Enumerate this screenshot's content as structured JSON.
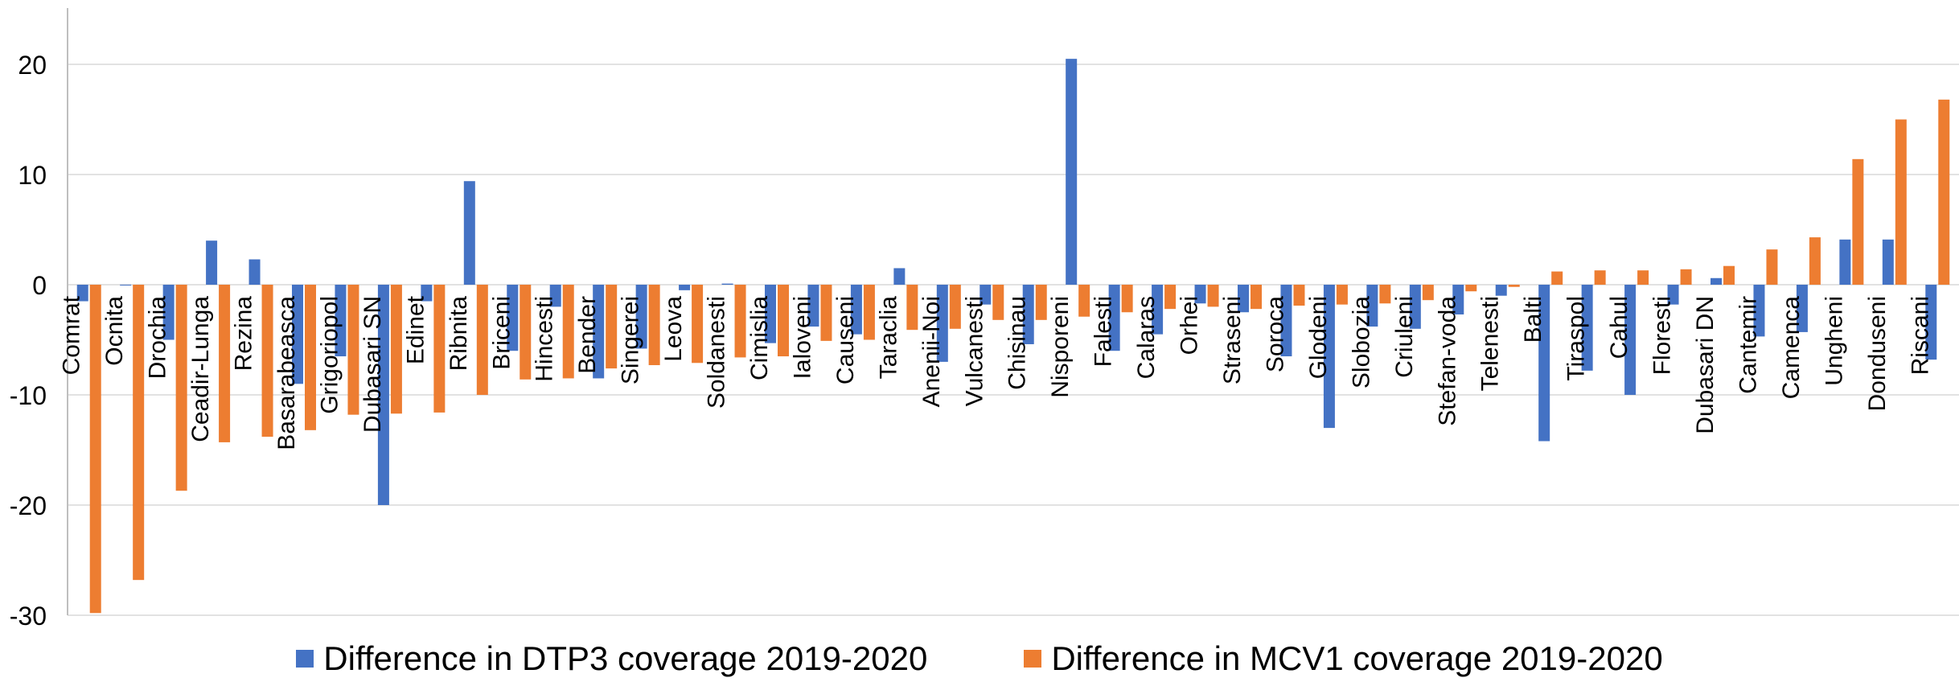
{
  "chart_data": {
    "type": "bar",
    "title": "",
    "xlabel": "",
    "ylabel": "",
    "ylim": [
      -30,
      25
    ],
    "yticks": [
      20,
      10,
      0,
      -10,
      -20,
      -30
    ],
    "grid": true,
    "legend_position": "bottom",
    "categories": [
      "Comrat",
      "Ocnita",
      "Drochia",
      "Ceadir-Lunga",
      "Rezina",
      "Basarabeasca",
      "Grigoriopol",
      "Dubasari SN",
      "Edinet",
      "Ribnita",
      "Briceni",
      "Hincesti",
      "Bender",
      "Singerei",
      "Leova",
      "Soldanesti",
      "Cimislia",
      "Ialoveni",
      "Causeni",
      "Taraclia",
      "Anenii-Noi",
      "Vulcanesti",
      "Chisinau",
      "Nisporeni",
      "Falesti",
      "Calaras",
      "Orhei",
      "Straseni",
      "Soroca",
      "Glodeni",
      "Slobozia",
      "Criuleni",
      "Stefan-voda",
      "Telenesti",
      "Balti",
      "Tiraspol",
      "Cahul",
      "Floresti",
      "Dubasari DN",
      "Cantemir",
      "Camenca",
      "Ungheni",
      "Donduseni",
      "Riscani"
    ],
    "series": [
      {
        "name": "Difference in DTP3 coverage 2019-2020",
        "color": "#4472C4",
        "values": [
          -1.5,
          0,
          -5,
          4,
          2.3,
          -9,
          -6.5,
          -20,
          -1.5,
          9.4,
          -6,
          -2,
          -8.5,
          -5.8,
          -0.5,
          0.1,
          -5.3,
          -3.8,
          -4.5,
          1.5,
          -7,
          -1.8,
          -5.4,
          20.5,
          -6,
          -4.5,
          -1.7,
          -2.5,
          -6.5,
          -13,
          -3.8,
          -4,
          -2.7,
          -1,
          -14.2,
          -7.8,
          -10,
          -1.8,
          0.6,
          -4.7,
          -4.3,
          4.1,
          4.1,
          -6.8
        ]
      },
      {
        "name": "Difference in MCV1 coverage 2019-2020",
        "color": "#ED7D31",
        "values": [
          -29.8,
          -26.8,
          -18.7,
          -14.3,
          -13.8,
          -13.2,
          -11.8,
          -11.7,
          -11.6,
          -10,
          -8.6,
          -8.5,
          -7.6,
          -7.3,
          -7.1,
          -6.6,
          -6.5,
          -5.1,
          -5,
          -4.1,
          -4,
          -3.2,
          -3.2,
          -2.9,
          -2.5,
          -2.2,
          -2,
          -2.2,
          -1.9,
          -1.8,
          -1.7,
          -1.4,
          -0.6,
          -0.2,
          1.2,
          1.3,
          1.3,
          1.4,
          1.7,
          3.2,
          4.3,
          11.4,
          15,
          16.8
        ]
      }
    ]
  }
}
